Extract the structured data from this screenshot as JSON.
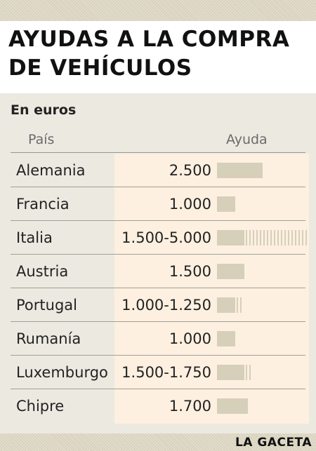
{
  "header": {
    "title_line1": "AYUDAS A LA COMPRA",
    "title_line2": "DE VEHÍCULOS"
  },
  "chart_data": {
    "type": "bar",
    "title": "AYUDAS A LA COMPRA DE VEHÍCULOS",
    "subtitle": "En euros",
    "column_headers": [
      "País",
      "Ayuda"
    ],
    "categories": [
      "Alemania",
      "Francia",
      "Italia",
      "Austria",
      "Portugal",
      "Rumanía",
      "Luxemburgo",
      "Chipre"
    ],
    "value_labels": [
      "2.500",
      "1.000",
      "1.500-5.000",
      "1.500",
      "1.000-1.250",
      "1.000",
      "1.500-1.750",
      "1.700"
    ],
    "values_min": [
      2500,
      1000,
      1500,
      1500,
      1000,
      1000,
      1500,
      1700
    ],
    "values_max": [
      2500,
      1000,
      5000,
      1500,
      1250,
      1000,
      1750,
      1700
    ],
    "xlim": [
      0,
      5000
    ],
    "colors": {
      "bar": "#d6cfba",
      "highlight": "#fdf0e0",
      "panel": "#ece9e1",
      "band": "#d8d2bd"
    }
  },
  "source": "LA GACETA"
}
